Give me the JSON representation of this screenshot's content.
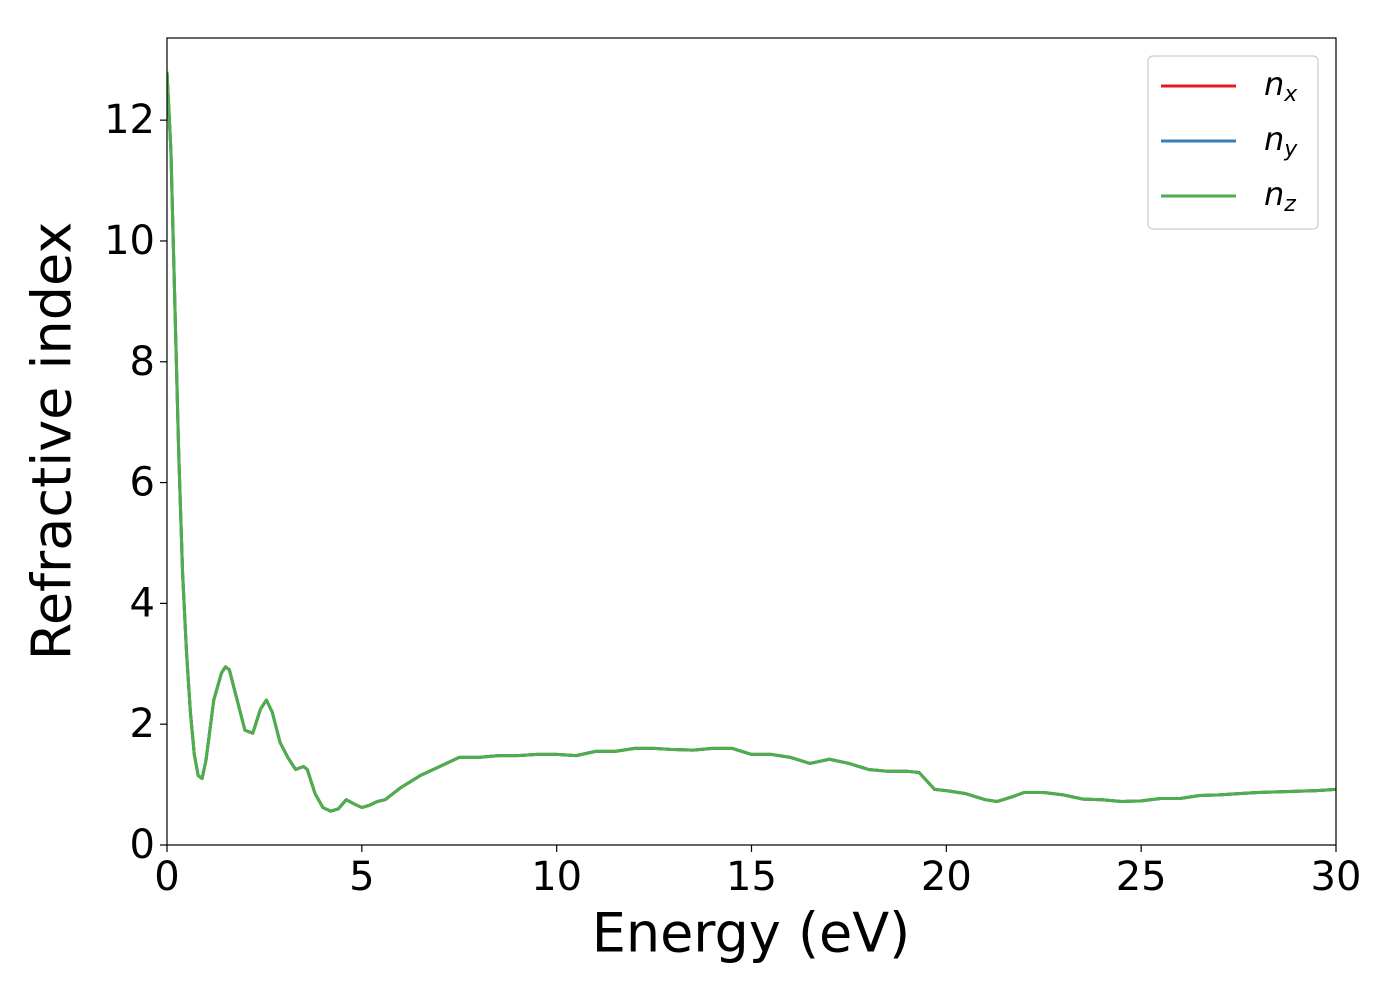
{
  "chart_data": {
    "type": "line",
    "xlabel": "Energy (eV)",
    "ylabel": "Refractive index",
    "x": [
      0,
      0.1,
      0.2,
      0.3,
      0.4,
      0.5,
      0.6,
      0.7,
      0.8,
      0.9,
      1.0,
      1.2,
      1.4,
      1.5,
      1.6,
      1.8,
      2.0,
      2.2,
      2.4,
      2.55,
      2.7,
      2.9,
      3.1,
      3.3,
      3.5,
      3.6,
      3.8,
      4.0,
      4.2,
      4.4,
      4.6,
      4.8,
      5.0,
      5.2,
      5.4,
      5.6,
      6.0,
      6.5,
      7.0,
      7.5,
      8.0,
      8.5,
      9.0,
      9.5,
      10.0,
      10.5,
      11.0,
      11.5,
      12.0,
      12.5,
      13.0,
      13.5,
      14.0,
      14.5,
      15.0,
      15.5,
      16.0,
      16.5,
      17.0,
      17.5,
      18.0,
      18.5,
      19.0,
      19.3,
      19.7,
      20.0,
      20.5,
      21.0,
      21.3,
      21.7,
      22.0,
      22.5,
      23.0,
      23.5,
      24.0,
      24.5,
      25.0,
      25.5,
      26.0,
      26.5,
      27.0,
      27.5,
      28.0,
      28.5,
      29.0,
      29.5,
      30.0
    ],
    "series": [
      {
        "name": "nx",
        "color": "#e41a1c",
        "values": [
          12.8,
          11.5,
          9.0,
          6.5,
          4.5,
          3.2,
          2.2,
          1.5,
          1.15,
          1.1,
          1.4,
          2.4,
          2.85,
          2.95,
          2.9,
          2.4,
          1.9,
          1.85,
          2.25,
          2.4,
          2.2,
          1.7,
          1.45,
          1.25,
          1.3,
          1.25,
          0.85,
          0.62,
          0.56,
          0.6,
          0.75,
          0.68,
          0.62,
          0.66,
          0.72,
          0.75,
          0.95,
          1.15,
          1.3,
          1.45,
          1.45,
          1.48,
          1.48,
          1.5,
          1.5,
          1.48,
          1.55,
          1.55,
          1.6,
          1.6,
          1.58,
          1.57,
          1.6,
          1.6,
          1.5,
          1.5,
          1.45,
          1.35,
          1.42,
          1.35,
          1.25,
          1.22,
          1.22,
          1.2,
          0.92,
          0.9,
          0.85,
          0.75,
          0.72,
          0.8,
          0.87,
          0.87,
          0.83,
          0.76,
          0.75,
          0.72,
          0.73,
          0.77,
          0.77,
          0.82,
          0.83,
          0.85,
          0.87,
          0.88,
          0.89,
          0.9,
          0.92
        ]
      },
      {
        "name": "ny",
        "color": "#377eb8",
        "values": [
          12.8,
          11.5,
          9.0,
          6.5,
          4.5,
          3.2,
          2.2,
          1.5,
          1.15,
          1.1,
          1.4,
          2.4,
          2.85,
          2.95,
          2.9,
          2.4,
          1.9,
          1.85,
          2.25,
          2.4,
          2.2,
          1.7,
          1.45,
          1.25,
          1.3,
          1.25,
          0.85,
          0.62,
          0.56,
          0.6,
          0.75,
          0.68,
          0.62,
          0.66,
          0.72,
          0.75,
          0.95,
          1.15,
          1.3,
          1.45,
          1.45,
          1.48,
          1.48,
          1.5,
          1.5,
          1.48,
          1.55,
          1.55,
          1.6,
          1.6,
          1.58,
          1.57,
          1.6,
          1.6,
          1.5,
          1.5,
          1.45,
          1.35,
          1.42,
          1.35,
          1.25,
          1.22,
          1.22,
          1.2,
          0.92,
          0.9,
          0.85,
          0.75,
          0.72,
          0.8,
          0.87,
          0.87,
          0.83,
          0.76,
          0.75,
          0.72,
          0.73,
          0.77,
          0.77,
          0.82,
          0.83,
          0.85,
          0.87,
          0.88,
          0.89,
          0.9,
          0.92
        ]
      },
      {
        "name": "nz",
        "color": "#4daf4a",
        "values": [
          12.8,
          11.5,
          9.0,
          6.5,
          4.5,
          3.2,
          2.2,
          1.5,
          1.15,
          1.1,
          1.4,
          2.4,
          2.85,
          2.95,
          2.9,
          2.4,
          1.9,
          1.85,
          2.25,
          2.4,
          2.2,
          1.7,
          1.45,
          1.25,
          1.3,
          1.25,
          0.85,
          0.62,
          0.56,
          0.6,
          0.75,
          0.68,
          0.62,
          0.66,
          0.72,
          0.75,
          0.95,
          1.15,
          1.3,
          1.45,
          1.45,
          1.48,
          1.48,
          1.5,
          1.5,
          1.48,
          1.55,
          1.55,
          1.6,
          1.6,
          1.58,
          1.57,
          1.6,
          1.6,
          1.5,
          1.5,
          1.45,
          1.35,
          1.42,
          1.35,
          1.25,
          1.22,
          1.22,
          1.2,
          0.92,
          0.9,
          0.85,
          0.75,
          0.72,
          0.8,
          0.87,
          0.87,
          0.83,
          0.76,
          0.75,
          0.72,
          0.73,
          0.77,
          0.77,
          0.82,
          0.83,
          0.85,
          0.87,
          0.88,
          0.89,
          0.9,
          0.92
        ]
      }
    ],
    "xlim": [
      0,
      30
    ],
    "xticks": [
      0,
      5,
      10,
      15,
      20,
      25,
      30
    ],
    "ylim": [
      0,
      13.36
    ],
    "yticks": [
      0,
      2,
      4,
      6,
      8,
      10,
      12
    ],
    "grid": false,
    "legend": "upper right"
  }
}
